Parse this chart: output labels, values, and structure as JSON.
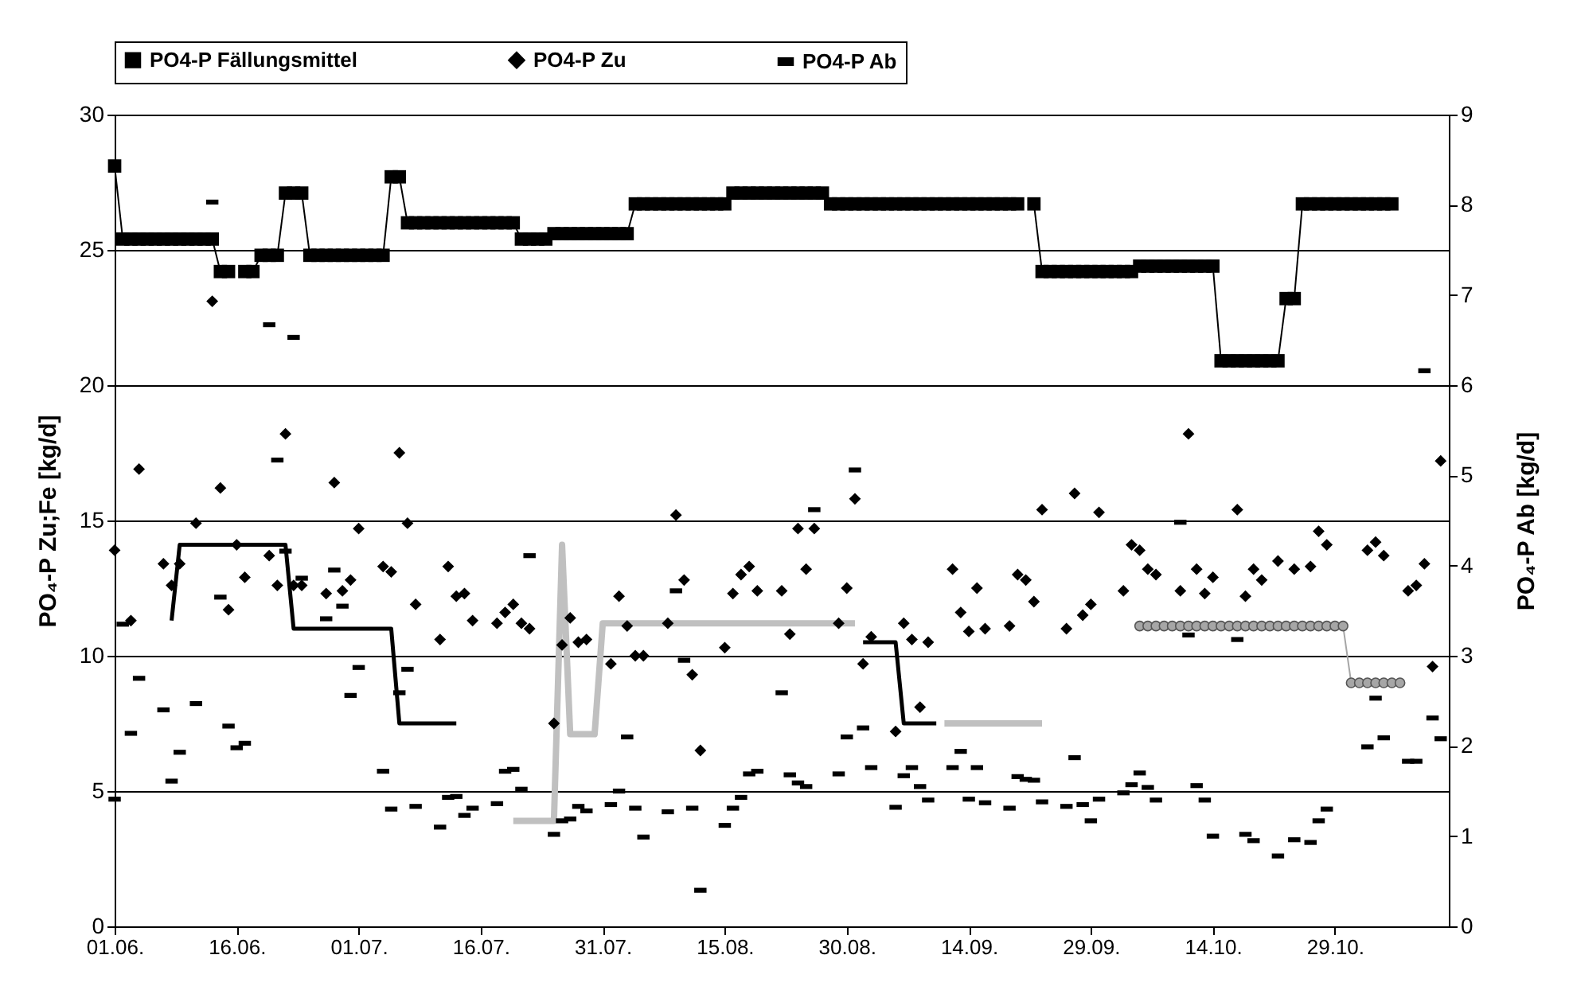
{
  "chart_data": {
    "type": "line",
    "ylabel": "PO₄-P Zu;Fe  [kg/d]",
    "y2label": "PO₄-P Ab [kg/d]",
    "x": [
      "--06-01",
      "--06-02",
      "--06-03",
      "--06-04",
      "--06-05",
      "--06-06",
      "--06-07",
      "--06-08",
      "--06-09",
      "--06-10",
      "--06-11",
      "--06-12",
      "--06-13",
      "--06-14",
      "--06-15",
      "--06-16",
      "--06-17",
      "--06-18",
      "--06-19",
      "--06-20",
      "--06-21",
      "--06-22",
      "--06-23",
      "--06-24",
      "--06-25",
      "--06-26",
      "--06-27",
      "--06-28",
      "--06-29",
      "--06-30",
      "--07-01",
      "--07-02",
      "--07-03",
      "--07-04",
      "--07-05",
      "--07-06",
      "--07-07",
      "--07-08",
      "--07-09",
      "--07-10",
      "--07-11",
      "--07-12",
      "--07-13",
      "--07-14",
      "--07-15",
      "--07-16",
      "--07-17",
      "--07-18",
      "--07-19",
      "--07-20",
      "--07-21",
      "--07-22",
      "--07-23",
      "--07-24",
      "--07-25",
      "--07-26",
      "--07-27",
      "--07-28",
      "--07-29",
      "--07-30",
      "--07-31",
      "--08-01",
      "--08-02",
      "--08-03",
      "--08-04",
      "--08-05",
      "--08-06",
      "--08-07",
      "--08-08",
      "--08-09",
      "--08-10",
      "--08-11",
      "--08-12",
      "--08-13",
      "--08-14",
      "--08-15",
      "--08-16",
      "--08-17",
      "--08-18",
      "--08-19",
      "--08-20",
      "--08-21",
      "--08-22",
      "--08-23",
      "--08-24",
      "--08-25",
      "--08-26",
      "--08-27",
      "--08-28",
      "--08-29",
      "--08-30",
      "--08-31",
      "--09-01",
      "--09-02",
      "--09-03",
      "--09-04",
      "--09-05",
      "--09-06",
      "--09-07",
      "--09-08",
      "--09-09",
      "--09-10",
      "--09-11",
      "--09-12",
      "--09-13",
      "--09-14",
      "--09-15",
      "--09-16",
      "--09-17",
      "--09-18",
      "--09-19",
      "--09-20",
      "--09-21",
      "--09-22",
      "--09-23",
      "--09-24",
      "--09-25",
      "--09-26",
      "--09-27",
      "--09-28",
      "--09-29",
      "--09-30",
      "--10-01",
      "--10-02",
      "--10-03",
      "--10-04",
      "--10-05",
      "--10-06",
      "--10-07",
      "--10-08",
      "--10-09",
      "--10-10",
      "--10-11",
      "--10-12",
      "--10-13",
      "--10-14",
      "--10-15",
      "--10-16",
      "--10-17",
      "--10-18",
      "--10-19",
      "--10-20",
      "--10-21",
      "--10-22",
      "--10-23",
      "--10-24",
      "--10-25",
      "--10-26",
      "--10-27",
      "--10-28",
      "--10-29",
      "--10-30",
      "--10-31",
      "--11-01",
      "--11-02",
      "--11-03",
      "--11-04",
      "--11-05",
      "--11-06",
      "--11-07",
      "--11-08",
      "--11-09",
      "--11-10",
      "--11-11"
    ],
    "xlim": [
      "--06-01",
      "--11-12"
    ],
    "xticks": [
      {
        "value": "--06-01",
        "label": "01.06."
      },
      {
        "value": "--06-16",
        "label": "16.06."
      },
      {
        "value": "--07-01",
        "label": "01.07."
      },
      {
        "value": "--07-16",
        "label": "16.07."
      },
      {
        "value": "--07-31",
        "label": "31.07."
      },
      {
        "value": "--08-15",
        "label": "15.08."
      },
      {
        "value": "--08-30",
        "label": "30.08."
      },
      {
        "value": "--09-14",
        "label": "14.09."
      },
      {
        "value": "--09-29",
        "label": "29.09."
      },
      {
        "value": "--10-14",
        "label": "14.10."
      },
      {
        "value": "--10-29",
        "label": "29.10."
      }
    ],
    "ylim": [
      0,
      30
    ],
    "yticks": [
      0,
      5,
      10,
      15,
      20,
      25,
      30
    ],
    "y2lim": [
      0,
      9
    ],
    "y2ticks": [
      0,
      1,
      2,
      3,
      4,
      5,
      6,
      7,
      8,
      9
    ],
    "grid": "y",
    "legend": "top",
    "series": [
      {
        "color": "#000000",
        "values": [
          null,
          null,
          null,
          null,
          null,
          null,
          null,
          11.3,
          14.1,
          14.1,
          14.1,
          14.1,
          14.1,
          14.1,
          14.1,
          14.1,
          14.1,
          14.1,
          14.1,
          14.1,
          14.1,
          14.1,
          11.0,
          11.0,
          11.0,
          11.0,
          11.0,
          11.0,
          11.0,
          11.0,
          11.0,
          11.0,
          11.0,
          11.0,
          11.0,
          7.5,
          7.5,
          7.5,
          7.5,
          7.5,
          7.5,
          7.5,
          7.5,
          null,
          null,
          null,
          null,
          null,
          null,
          null,
          null,
          null,
          null,
          null,
          null,
          null,
          null,
          null,
          null,
          null,
          null,
          null,
          null,
          null,
          null,
          null,
          null,
          null,
          null,
          null,
          null,
          null,
          null,
          null,
          null,
          null,
          null,
          null,
          null,
          null,
          null,
          null,
          null,
          null,
          null,
          null,
          null,
          null,
          null,
          null,
          null,
          null,
          10.5,
          10.5,
          10.5,
          10.5,
          10.5,
          7.5,
          7.5,
          7.5,
          7.5,
          7.5,
          null,
          null,
          null,
          null,
          null,
          null,
          null,
          null,
          null,
          null,
          null,
          null,
          null,
          null,
          null,
          null,
          null,
          null,
          null,
          null,
          null,
          null,
          null,
          null,
          null,
          null,
          null,
          null,
          null,
          null,
          null,
          null,
          null,
          null,
          null,
          null,
          null,
          null,
          null,
          null,
          null,
          null,
          null,
          null,
          null,
          null,
          null,
          null,
          null,
          null,
          null,
          null,
          null,
          null,
          null,
          null,
          null,
          null,
          null,
          null,
          null,
          null
        ]
      },
      {
        "color": "#c0c0c0",
        "values": [
          null,
          null,
          null,
          null,
          null,
          null,
          null,
          null,
          null,
          null,
          null,
          null,
          null,
          null,
          null,
          null,
          null,
          null,
          null,
          null,
          null,
          null,
          null,
          null,
          null,
          null,
          null,
          null,
          null,
          null,
          null,
          null,
          null,
          null,
          null,
          null,
          null,
          null,
          null,
          null,
          null,
          null,
          null,
          null,
          null,
          null,
          null,
          null,
          null,
          3.9,
          3.9,
          3.9,
          3.9,
          3.9,
          3.9,
          14.1,
          7.1,
          7.1,
          7.1,
          7.1,
          11.2,
          11.2,
          11.2,
          11.2,
          11.2,
          11.2,
          11.2,
          11.2,
          11.2,
          11.2,
          11.2,
          11.2,
          11.2,
          11.2,
          11.2,
          11.2,
          11.2,
          11.2,
          11.2,
          11.2,
          11.2,
          11.2,
          11.2,
          11.2,
          11.2,
          11.2,
          11.2,
          11.2,
          11.2,
          11.2,
          11.2,
          11.2,
          null,
          null,
          null,
          null,
          null,
          null,
          null,
          null,
          null,
          null,
          7.5,
          7.5,
          7.5,
          7.5,
          7.5,
          7.5,
          7.5,
          7.5,
          7.5,
          7.5,
          7.5,
          7.5,
          7.5,
          null,
          null,
          null,
          null,
          null,
          null,
          null,
          null,
          null,
          null,
          null,
          null,
          null,
          null,
          null,
          null,
          null,
          null,
          null,
          null,
          null,
          null,
          null,
          null,
          null,
          null,
          null,
          null,
          null,
          null,
          null,
          null,
          null,
          null,
          null,
          null,
          null,
          null,
          null,
          null,
          null,
          null,
          null,
          null,
          null,
          null,
          null,
          null,
          null
        ]
      },
      {
        "color": "#a6a6a6",
        "marker": "circle",
        "values": [
          null,
          null,
          null,
          null,
          null,
          null,
          null,
          null,
          null,
          null,
          null,
          null,
          null,
          null,
          null,
          null,
          null,
          null,
          null,
          null,
          null,
          null,
          null,
          null,
          null,
          null,
          null,
          null,
          null,
          null,
          null,
          null,
          null,
          null,
          null,
          null,
          null,
          null,
          null,
          null,
          null,
          null,
          null,
          null,
          null,
          null,
          null,
          null,
          null,
          null,
          null,
          null,
          null,
          null,
          null,
          null,
          null,
          null,
          null,
          null,
          null,
          null,
          null,
          null,
          null,
          null,
          null,
          null,
          null,
          null,
          null,
          null,
          null,
          null,
          null,
          null,
          null,
          null,
          null,
          null,
          null,
          null,
          null,
          null,
          null,
          null,
          null,
          null,
          null,
          null,
          null,
          null,
          null,
          null,
          null,
          null,
          null,
          null,
          null,
          null,
          null,
          null,
          null,
          null,
          null,
          null,
          null,
          null,
          null,
          null,
          null,
          null,
          null,
          null,
          null,
          null,
          null,
          null,
          null,
          null,
          null,
          null,
          null,
          null,
          null,
          null,
          11.1,
          11.1,
          11.1,
          11.1,
          11.1,
          11.1,
          11.1,
          11.1,
          11.1,
          11.1,
          11.1,
          11.1,
          11.1,
          11.1,
          11.1,
          11.1,
          11.1,
          11.1,
          11.1,
          11.1,
          11.1,
          11.1,
          11.1,
          11.1,
          11.1,
          11.1,
          9.0,
          9.0,
          9.0,
          9.0,
          9.0,
          9.0,
          9.0,
          null,
          null,
          null,
          null,
          null
        ]
      },
      {
        "name": "PO4-P Fällungsmittel",
        "color": "#000000",
        "marker": "square",
        "values": [
          28.1,
          25.4,
          25.4,
          25.4,
          25.4,
          25.4,
          25.4,
          25.4,
          25.4,
          25.4,
          25.4,
          25.4,
          25.4,
          24.2,
          24.2,
          null,
          24.2,
          24.2,
          24.8,
          24.8,
          24.8,
          27.1,
          27.1,
          27.1,
          24.8,
          24.8,
          24.8,
          24.8,
          24.8,
          24.8,
          24.8,
          24.8,
          24.8,
          24.8,
          27.7,
          27.7,
          26.0,
          26.0,
          26.0,
          26.0,
          26.0,
          26.0,
          26.0,
          26.0,
          26.0,
          26.0,
          26.0,
          26.0,
          26.0,
          26.0,
          25.4,
          25.4,
          25.4,
          25.4,
          25.6,
          25.6,
          25.6,
          25.6,
          25.6,
          25.6,
          25.6,
          25.6,
          25.6,
          25.6,
          26.7,
          26.7,
          26.7,
          26.7,
          26.7,
          26.7,
          26.7,
          26.7,
          26.7,
          26.7,
          26.7,
          26.7,
          27.1,
          27.1,
          27.1,
          27.1,
          27.1,
          27.1,
          27.1,
          27.1,
          27.1,
          27.1,
          27.1,
          27.1,
          26.7,
          26.7,
          26.7,
          26.7,
          26.7,
          26.7,
          26.7,
          26.7,
          26.7,
          26.7,
          26.7,
          26.7,
          26.7,
          26.7,
          26.7,
          26.7,
          26.7,
          26.7,
          26.7,
          26.7,
          26.7,
          26.7,
          26.7,
          26.7,
          null,
          26.7,
          24.2,
          24.2,
          24.2,
          24.2,
          24.2,
          24.2,
          24.2,
          24.2,
          24.2,
          24.2,
          24.2,
          24.2,
          24.4,
          24.4,
          24.4,
          24.4,
          24.4,
          24.4,
          24.4,
          24.4,
          24.4,
          24.4,
          20.9,
          20.9,
          20.9,
          20.9,
          20.9,
          20.9,
          20.9,
          20.9,
          23.2,
          23.2,
          26.7,
          26.7,
          26.7,
          26.7,
          26.7,
          26.7,
          26.7,
          26.7,
          26.7,
          26.7,
          26.7,
          26.7,
          null,
          null,
          null,
          null,
          null,
          null
        ]
      },
      {
        "type": "scatter",
        "name": "PO4-P Zu",
        "color": "#000000",
        "marker": "diamond",
        "values": [
          13.9,
          null,
          11.3,
          16.9,
          null,
          null,
          13.4,
          12.6,
          13.4,
          null,
          14.9,
          null,
          23.1,
          16.2,
          11.7,
          14.1,
          12.9,
          null,
          null,
          13.7,
          12.6,
          18.2,
          12.6,
          12.6,
          null,
          null,
          12.3,
          16.4,
          12.4,
          12.8,
          14.7,
          null,
          null,
          13.3,
          13.1,
          17.5,
          14.9,
          11.9,
          null,
          null,
          10.6,
          13.3,
          12.2,
          12.3,
          11.3,
          null,
          null,
          11.2,
          11.6,
          11.9,
          11.2,
          11.0,
          null,
          null,
          7.5,
          10.4,
          11.4,
          10.5,
          10.6,
          null,
          null,
          9.7,
          12.2,
          11.1,
          10.0,
          10.0,
          null,
          null,
          11.2,
          15.2,
          12.8,
          9.3,
          6.5,
          null,
          null,
          10.3,
          12.3,
          13.0,
          13.3,
          12.4,
          null,
          null,
          12.4,
          10.8,
          14.7,
          13.2,
          14.7,
          null,
          null,
          11.2,
          12.5,
          15.8,
          9.7,
          10.7,
          null,
          null,
          7.2,
          11.2,
          10.6,
          8.1,
          10.5,
          null,
          null,
          13.2,
          11.6,
          10.9,
          12.5,
          11.0,
          null,
          null,
          11.1,
          13.0,
          12.8,
          12.0,
          15.4,
          null,
          null,
          11.0,
          16.0,
          11.5,
          11.9,
          15.3,
          null,
          null,
          12.4,
          14.1,
          13.9,
          13.2,
          13.0,
          null,
          null,
          12.4,
          18.2,
          13.2,
          12.3,
          12.9,
          null,
          null,
          15.4,
          12.2,
          13.2,
          12.8,
          null,
          13.5,
          null,
          13.2,
          null,
          13.3,
          14.6,
          14.1,
          null,
          null,
          null,
          null,
          13.9,
          14.2,
          13.7,
          null,
          null,
          12.4,
          12.6,
          13.4,
          9.6,
          17.2
        ]
      },
      {
        "type": "scatter",
        "name": "PO4-P Ab",
        "color": "#000000",
        "axis": "y2",
        "values": [
          1.41,
          3.35,
          2.14,
          2.75,
          null,
          null,
          2.4,
          1.61,
          1.93,
          null,
          2.47,
          null,
          8.03,
          3.65,
          2.22,
          1.98,
          2.03,
          null,
          null,
          6.67,
          5.17,
          4.16,
          6.53,
          3.86,
          null,
          null,
          3.41,
          3.95,
          3.55,
          2.56,
          2.87,
          null,
          null,
          1.72,
          1.3,
          2.59,
          2.85,
          1.33,
          null,
          null,
          1.1,
          1.43,
          1.44,
          1.23,
          1.31,
          null,
          null,
          1.36,
          1.72,
          1.74,
          1.52,
          4.11,
          null,
          null,
          1.02,
          1.17,
          1.19,
          1.33,
          1.28,
          null,
          null,
          1.35,
          1.5,
          2.1,
          1.31,
          0.99,
          null,
          null,
          1.27,
          3.72,
          2.95,
          1.31,
          0.4,
          null,
          null,
          1.12,
          1.31,
          1.43,
          1.69,
          1.72,
          null,
          null,
          2.59,
          1.68,
          1.59,
          1.55,
          4.62,
          null,
          null,
          1.69,
          2.1,
          5.06,
          2.2,
          1.76,
          null,
          null,
          1.32,
          1.67,
          1.76,
          1.55,
          1.4,
          null,
          null,
          1.76,
          1.94,
          1.41,
          1.76,
          1.37,
          null,
          null,
          1.31,
          1.66,
          1.63,
          1.62,
          1.38,
          null,
          null,
          1.33,
          1.87,
          1.35,
          1.17,
          1.41,
          null,
          null,
          1.48,
          1.57,
          1.7,
          1.54,
          1.4,
          null,
          null,
          4.48,
          3.23,
          1.56,
          1.4,
          1.0,
          null,
          null,
          3.18,
          1.02,
          0.95,
          null,
          null,
          0.78,
          null,
          0.96,
          null,
          0.93,
          1.17,
          1.3,
          null,
          null,
          null,
          null,
          1.99,
          2.53,
          2.09,
          null,
          null,
          1.83,
          1.83,
          6.16,
          2.31,
          2.08
        ]
      }
    ]
  }
}
